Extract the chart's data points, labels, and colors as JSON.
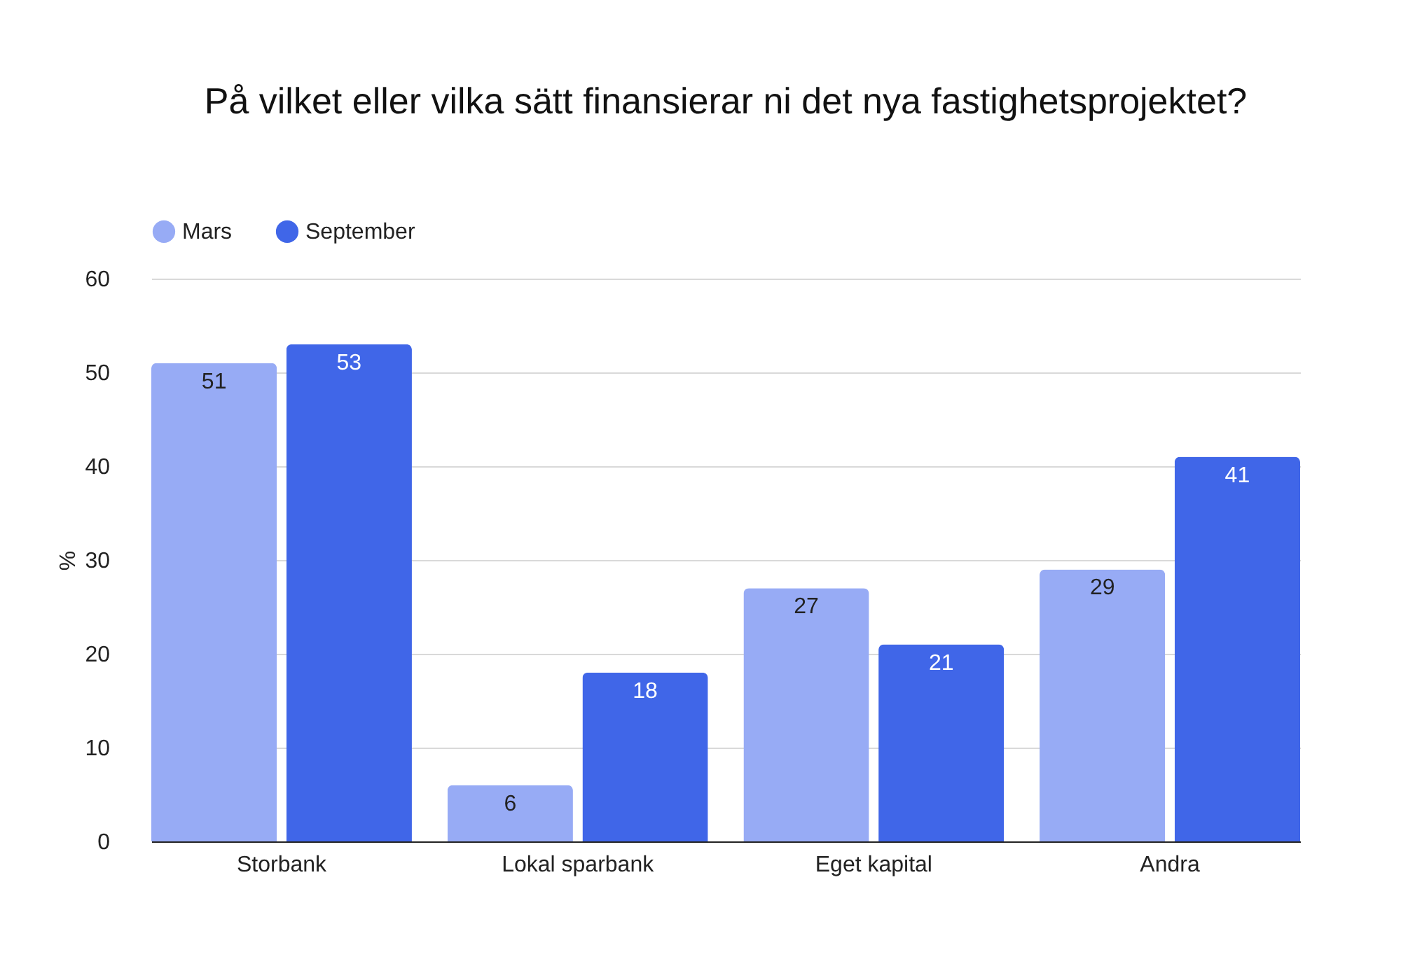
{
  "chart_data": {
    "type": "bar",
    "title": "På vilket eller vilka sätt finansierar ni det nya fastighetsprojektet?",
    "ylabel": "%",
    "categories": [
      "Storbank",
      "Lokal sparbank",
      "Eget kapital",
      "Andra"
    ],
    "series": [
      {
        "name": "Mars",
        "color": "#97abf5",
        "values": [
          51,
          6,
          27,
          29
        ]
      },
      {
        "name": "September",
        "color": "#4066e8",
        "values": [
          53,
          18,
          21,
          41
        ]
      }
    ],
    "ylim": [
      0,
      60
    ],
    "yticks": [
      0,
      10,
      20,
      30,
      40,
      50,
      60
    ],
    "grid": "y",
    "legend": "top",
    "data_labels": true
  }
}
